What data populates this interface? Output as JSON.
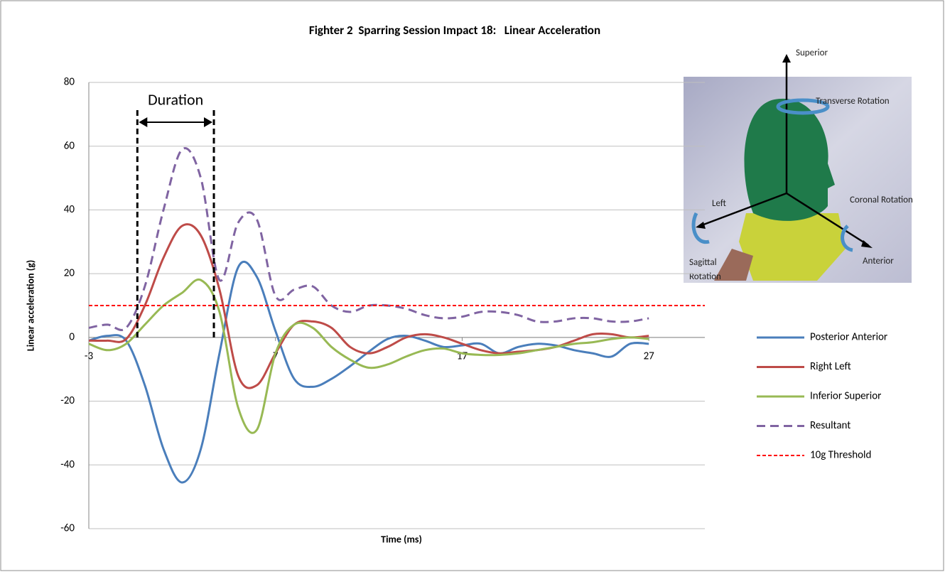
{
  "chart_data": {
    "type": "line",
    "title": "Fighter 2  Sparring Session Impact 18:   Linear Acceleration",
    "x_label": "Time (ms)",
    "y_label": "Linear acceleration (g)",
    "x": [
      -3,
      -2,
      -1,
      0,
      1,
      2,
      3,
      4,
      5,
      6,
      7,
      8,
      9,
      10,
      11,
      12,
      13,
      14,
      15,
      16,
      17,
      18,
      19,
      20,
      21,
      22,
      23,
      24,
      25,
      26,
      27
    ],
    "series": [
      {
        "name": "Posterior Anterior",
        "color": "#4a7ebb",
        "dash": false,
        "values": [
          -1,
          0.5,
          -1,
          -15,
          -35,
          -45.5,
          -35,
          -5,
          22,
          19,
          2,
          -13,
          -15.5,
          -13,
          -9,
          -4.5,
          -0.5,
          0.5,
          -1,
          -3,
          -2.5,
          -2,
          -5,
          -3,
          -2,
          -2.5,
          -4,
          -5,
          -6,
          -2,
          -2
        ]
      },
      {
        "name": "Right Left",
        "color": "#be4b48",
        "dash": false,
        "values": [
          -1,
          -1,
          -0.5,
          10,
          25,
          35,
          32,
          15,
          -12,
          -15,
          -5,
          4,
          5,
          3,
          -3,
          -5,
          -3,
          0,
          1,
          0,
          -2,
          -4,
          -5,
          -4.5,
          -4,
          -3,
          -1,
          1,
          1,
          0,
          0.5
        ]
      },
      {
        "name": "Inferior Superior",
        "color": "#98b954",
        "dash": false,
        "values": [
          -2,
          -4,
          -2,
          4,
          10,
          14,
          18,
          8,
          -22,
          -29,
          -5,
          4,
          3,
          -3,
          -7,
          -9.5,
          -8.5,
          -6,
          -4,
          -3.5,
          -5,
          -5.5,
          -5.5,
          -5,
          -4,
          -3,
          -2,
          -1.5,
          -0.5,
          0,
          -0.5
        ]
      },
      {
        "name": "Resultant",
        "color": "#8064a2",
        "dash": true,
        "values": [
          3,
          4,
          3,
          16,
          40,
          59,
          50,
          18,
          36,
          37,
          13,
          15,
          16,
          10,
          8,
          10,
          10,
          9,
          7,
          6,
          6.5,
          8,
          8,
          7,
          5,
          5,
          6,
          6,
          5,
          5,
          6
        ]
      }
    ],
    "reference_lines": [
      {
        "name": "10g Threshold",
        "value": 10,
        "color": "#ff0000"
      }
    ],
    "annotation": {
      "text": "Duration",
      "start": -0.4,
      "end": 3.7
    },
    "xlim": [
      -3,
      30
    ],
    "xticks": [
      -3,
      7,
      17,
      27
    ],
    "ylim": [
      -60,
      80
    ],
    "yticks": [
      -60,
      -40,
      -20,
      0,
      20,
      40,
      60,
      80
    ],
    "grid": true,
    "legend": "right",
    "inset": {
      "superior": "Superior",
      "transverse": "Transverse Rotation",
      "left": "Left",
      "coronal": "Coronal Rotation",
      "sagittal_1": "Sagittal",
      "sagittal_2": "Rotation",
      "anterior": "Anterior"
    }
  }
}
